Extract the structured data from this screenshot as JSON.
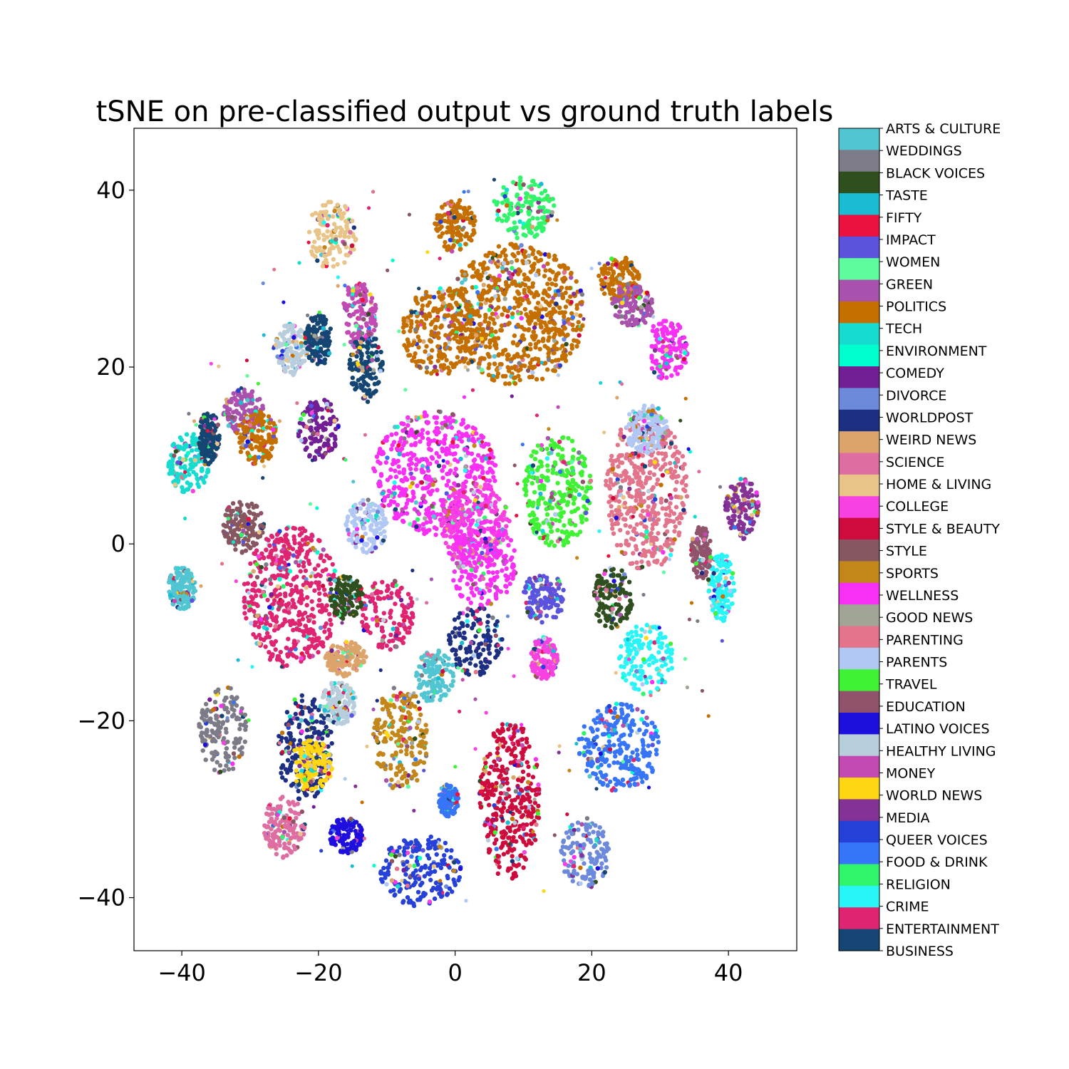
{
  "chart_data": {
    "type": "scatter",
    "title": "tSNE on pre-classified output vs ground truth labels",
    "xlabel": "",
    "ylabel": "",
    "xlim": [
      -47,
      50
    ],
    "ylim": [
      -46,
      47
    ],
    "x_ticks": [
      -40,
      -20,
      0,
      20,
      40
    ],
    "y_ticks": [
      -40,
      -20,
      0,
      20,
      40
    ],
    "x_tick_labels": [
      "−40",
      "−20",
      "0",
      "20",
      "40"
    ],
    "y_tick_labels": [
      "−40",
      "−20",
      "0",
      "20",
      "40"
    ],
    "grid": false,
    "legend": "colorbar at right",
    "categories": [
      {
        "name": "ARTS & CULTURE",
        "color": "#52c5d2"
      },
      {
        "name": "WEDDINGS",
        "color": "#7d7b87"
      },
      {
        "name": "BLACK VOICES",
        "color": "#2f4f1f"
      },
      {
        "name": "TASTE",
        "color": "#19bcd2"
      },
      {
        "name": "FIFTY",
        "color": "#eb1240"
      },
      {
        "name": "IMPACT",
        "color": "#5b52de"
      },
      {
        "name": "WOMEN",
        "color": "#5efc9f"
      },
      {
        "name": "GREEN",
        "color": "#a952ad"
      },
      {
        "name": "POLITICS",
        "color": "#c46f00"
      },
      {
        "name": "TECH",
        "color": "#16dccf"
      },
      {
        "name": "ENVIRONMENT",
        "color": "#00ffce"
      },
      {
        "name": "COMEDY",
        "color": "#721e94"
      },
      {
        "name": "DIVORCE",
        "color": "#6d89dc"
      },
      {
        "name": "WORLDPOST",
        "color": "#1c2f82"
      },
      {
        "name": "WEIRD NEWS",
        "color": "#dca36a"
      },
      {
        "name": "SCIENCE",
        "color": "#de6ea1"
      },
      {
        "name": "HOME & LIVING",
        "color": "#e9c488"
      },
      {
        "name": "COLLEGE",
        "color": "#f742e1"
      },
      {
        "name": "STYLE & BEAUTY",
        "color": "#cd0b3c"
      },
      {
        "name": "STYLE",
        "color": "#875761"
      },
      {
        "name": "SPORTS",
        "color": "#c3861b"
      },
      {
        "name": "WELLNESS",
        "color": "#f82ff5"
      },
      {
        "name": "GOOD NEWS",
        "color": "#a0a596"
      },
      {
        "name": "PARENTING",
        "color": "#e2748b"
      },
      {
        "name": "PARENTS",
        "color": "#b1c8f5"
      },
      {
        "name": "TRAVEL",
        "color": "#40f234"
      },
      {
        "name": "EDUCATION",
        "color": "#91536c"
      },
      {
        "name": "LATINO VOICES",
        "color": "#1f0fde"
      },
      {
        "name": "HEALTHY LIVING",
        "color": "#b9cedd"
      },
      {
        "name": "MONEY",
        "color": "#c44ab3"
      },
      {
        "name": "WORLD NEWS",
        "color": "#ffd612"
      },
      {
        "name": "MEDIA",
        "color": "#843295"
      },
      {
        "name": "QUEER VOICES",
        "color": "#2641d8"
      },
      {
        "name": "FOOD & DRINK",
        "color": "#3675f7"
      },
      {
        "name": "RELIGION",
        "color": "#30f56b"
      },
      {
        "name": "CRIME",
        "color": "#27f5f7"
      },
      {
        "name": "ENTERTAINMENT",
        "color": "#df2471"
      },
      {
        "name": "BUSINESS",
        "color": "#154673"
      }
    ],
    "clusters": [
      {
        "label": "POLITICS",
        "cx": 9,
        "cy": 26,
        "rx": 10,
        "ry": 8
      },
      {
        "label": "POLITICS",
        "cx": -2,
        "cy": 24,
        "rx": 6,
        "ry": 5
      },
      {
        "label": "POLITICS",
        "cx": 0,
        "cy": 36,
        "rx": 3,
        "ry": 3
      },
      {
        "label": "POLITICS",
        "cx": 24,
        "cy": 30,
        "rx": 3,
        "ry": 2.5
      },
      {
        "label": "RELIGION",
        "cx": 10,
        "cy": 38,
        "rx": 4.5,
        "ry": 3.5
      },
      {
        "label": "HOME & LIVING",
        "cx": -18,
        "cy": 35,
        "rx": 3.5,
        "ry": 4
      },
      {
        "label": "MONEY",
        "cx": -14,
        "cy": 26,
        "rx": 2.5,
        "ry": 4
      },
      {
        "label": "BUSINESS",
        "cx": -13,
        "cy": 20,
        "rx": 2.5,
        "ry": 4
      },
      {
        "label": "HEALTHY LIVING",
        "cx": -24,
        "cy": 22,
        "rx": 2.5,
        "ry": 3
      },
      {
        "label": "BUSINESS",
        "cx": -20,
        "cy": 23,
        "rx": 2,
        "ry": 3
      },
      {
        "label": "GREEN",
        "cx": -31,
        "cy": 15,
        "rx": 3,
        "ry": 2.5
      },
      {
        "label": "POLITICS",
        "cx": -29,
        "cy": 12,
        "rx": 3,
        "ry": 3
      },
      {
        "label": "COMEDY",
        "cx": -20,
        "cy": 13,
        "rx": 3,
        "ry": 3.5
      },
      {
        "label": "TECH",
        "cx": -39,
        "cy": 9,
        "rx": 3,
        "ry": 3.5
      },
      {
        "label": "BUSINESS",
        "cx": -36,
        "cy": 12,
        "rx": 1.5,
        "ry": 3
      },
      {
        "label": "WELLNESS",
        "cx": -3,
        "cy": 8,
        "rx": 9,
        "ry": 7
      },
      {
        "label": "COLLEGE",
        "cx": 3,
        "cy": 2,
        "rx": 5,
        "ry": 5
      },
      {
        "label": "WELLNESS",
        "cx": 4,
        "cy": -2,
        "rx": 5,
        "ry": 5
      },
      {
        "label": "TRAVEL",
        "cx": 15,
        "cy": 6,
        "rx": 5,
        "ry": 6.5
      },
      {
        "label": "PARENTING",
        "cx": 28,
        "cy": 6,
        "rx": 6,
        "ry": 9
      },
      {
        "label": "PARENTS",
        "cx": 28,
        "cy": 13,
        "rx": 3,
        "ry": 3
      },
      {
        "label": "WELLNESS",
        "cx": 31,
        "cy": 22,
        "rx": 3,
        "ry": 3.5
      },
      {
        "label": "GREEN",
        "cx": 26,
        "cy": 27,
        "rx": 3,
        "ry": 2.5
      },
      {
        "label": "MEDIA",
        "cx": 42,
        "cy": 4,
        "rx": 2.5,
        "ry": 3.5
      },
      {
        "label": "CRIME",
        "cx": 39,
        "cy": -5,
        "rx": 2,
        "ry": 4
      },
      {
        "label": "EDUCATION",
        "cx": 36,
        "cy": -1,
        "rx": 1.5,
        "ry": 3
      },
      {
        "label": "ENTERTAINMENT",
        "cx": -24,
        "cy": -6,
        "rx": 7,
        "ry": 8
      },
      {
        "label": "STYLE",
        "cx": -31,
        "cy": 2,
        "rx": 3,
        "ry": 3
      },
      {
        "label": "ENTERTAINMENT",
        "cx": -10,
        "cy": -8,
        "rx": 4,
        "ry": 4
      },
      {
        "label": "PARENTS",
        "cx": -13,
        "cy": 2,
        "rx": 3,
        "ry": 3
      },
      {
        "label": "BLACK VOICES",
        "cx": -16,
        "cy": -6,
        "rx": 2.5,
        "ry": 2.5
      },
      {
        "label": "ARTS & CULTURE",
        "cx": -40,
        "cy": -5,
        "rx": 2,
        "ry": 2.5
      },
      {
        "label": "WEIRD NEWS",
        "cx": -16,
        "cy": -13,
        "rx": 3,
        "ry": 2
      },
      {
        "label": "CRIME",
        "cx": 28,
        "cy": -13,
        "rx": 4,
        "ry": 4
      },
      {
        "label": "BLACK VOICES",
        "cx": 23,
        "cy": -6,
        "rx": 3,
        "ry": 3.5
      },
      {
        "label": "IMPACT",
        "cx": 13,
        "cy": -6,
        "rx": 3,
        "ry": 3
      },
      {
        "label": "WORLDPOST",
        "cx": 3,
        "cy": -11,
        "rx": 4,
        "ry": 4
      },
      {
        "label": "COLLEGE",
        "cx": 13,
        "cy": -13,
        "rx": 2,
        "ry": 2.5
      },
      {
        "label": "ARTS & CULTURE",
        "cx": -3,
        "cy": -15,
        "rx": 3,
        "ry": 3
      },
      {
        "label": "WEDDINGS",
        "cx": -34,
        "cy": -21,
        "rx": 3.5,
        "ry": 5
      },
      {
        "label": "WORLDPOST",
        "cx": -22,
        "cy": -23,
        "rx": 4,
        "ry": 6
      },
      {
        "label": "WORLD NEWS",
        "cx": -21,
        "cy": -25,
        "rx": 3,
        "ry": 3
      },
      {
        "label": "SPORTS",
        "cx": -8,
        "cy": -22,
        "rx": 4,
        "ry": 6
      },
      {
        "label": "STYLE & BEAUTY",
        "cx": 8,
        "cy": -29,
        "rx": 4.5,
        "ry": 9
      },
      {
        "label": "FOOD & DRINK",
        "cx": 24,
        "cy": -23,
        "rx": 6,
        "ry": 5
      },
      {
        "label": "QUEER VOICES",
        "cx": -5,
        "cy": -37,
        "rx": 6,
        "ry": 4
      },
      {
        "label": "SCIENCE",
        "cx": -25,
        "cy": -32,
        "rx": 3,
        "ry": 3.5
      },
      {
        "label": "LATINO VOICES",
        "cx": -16,
        "cy": -33,
        "rx": 2.5,
        "ry": 2
      },
      {
        "label": "DIVORCE",
        "cx": 19,
        "cy": -35,
        "rx": 3.5,
        "ry": 4
      },
      {
        "label": "FOOD & DRINK",
        "cx": -1,
        "cy": -29,
        "rx": 1.5,
        "ry": 1.8
      },
      {
        "label": "HEALTHY LIVING",
        "cx": -17,
        "cy": -18,
        "rx": 2.5,
        "ry": 2.5
      }
    ]
  }
}
